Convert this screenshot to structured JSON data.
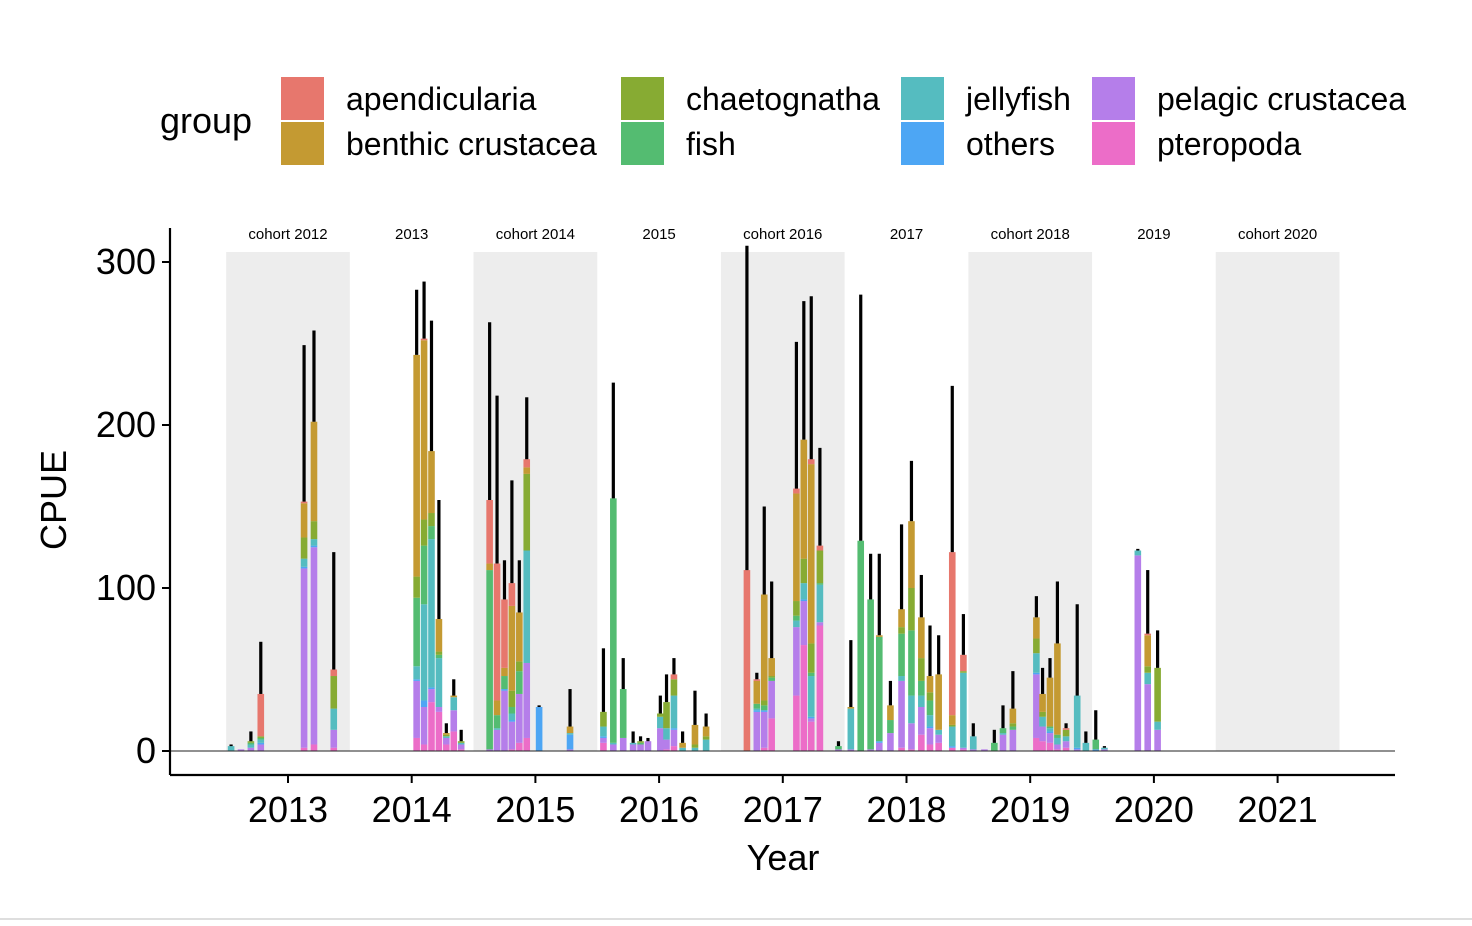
{
  "chart_data": {
    "type": "bar",
    "stacked": true,
    "title": "",
    "xlabel": "Year",
    "ylabel": "CPUE",
    "xlim": [
      2011.9,
      2021.9
    ],
    "ylim": [
      -14,
      320
    ],
    "x_ticks": [
      2013,
      2014,
      2015,
      2016,
      2017,
      2018,
      2019,
      2020,
      2021
    ],
    "y_ticks": [
      0,
      100,
      200,
      300
    ],
    "grid": false,
    "legend": {
      "title": "group",
      "placement": "top",
      "entries": [
        {
          "name": "apendicularia",
          "color": "#E7776D"
        },
        {
          "name": "benthic crustacea",
          "color": "#C49A32"
        },
        {
          "name": "chaetognatha",
          "color": "#87AB33"
        },
        {
          "name": "fish",
          "color": "#54BC71"
        },
        {
          "name": "jellyfish",
          "color": "#55BCC0"
        },
        {
          "name": "others",
          "color": "#4DA6F4"
        },
        {
          "name": "pelagic crustacea",
          "color": "#B57EEA"
        },
        {
          "name": "pteropoda",
          "color": "#EC6DC8"
        }
      ]
    },
    "stack_order": [
      "pteropoda",
      "pelagic crustacea",
      "others",
      "jellyfish",
      "fish",
      "chaetognatha",
      "benthic crustacea",
      "apendicularia"
    ],
    "cohort_bands": [
      {
        "label": "cohort 2012",
        "start": 2012.5,
        "end": 2013.5,
        "shaded": true
      },
      {
        "label": "2013",
        "start": 2013.5,
        "end": 2014.5,
        "shaded": false
      },
      {
        "label": "cohort 2014",
        "start": 2014.5,
        "end": 2015.5,
        "shaded": true
      },
      {
        "label": "2015",
        "start": 2015.5,
        "end": 2016.5,
        "shaded": false
      },
      {
        "label": "cohort 2016",
        "start": 2016.5,
        "end": 2017.5,
        "shaded": true
      },
      {
        "label": "2017",
        "start": 2017.5,
        "end": 2018.5,
        "shaded": false
      },
      {
        "label": "cohort 2018",
        "start": 2018.5,
        "end": 2019.5,
        "shaded": true
      },
      {
        "label": "2019",
        "start": 2019.5,
        "end": 2020.5,
        "shaded": false
      },
      {
        "label": "cohort 2020",
        "start": 2020.5,
        "end": 2021.5,
        "shaded": true
      }
    ],
    "bars": [
      {
        "x": 2012.54,
        "segments": {
          "jellyfish": 3
        },
        "error": 4
      },
      {
        "x": 2012.62,
        "segments": {
          "pelagic crustacea": 1
        },
        "error": 1
      },
      {
        "x": 2012.7,
        "segments": {
          "pelagic crustacea": 2,
          "jellyfish": 2,
          "fish": 1,
          "chaetognatha": 1
        },
        "error": 12
      },
      {
        "x": 2012.78,
        "segments": {
          "pelagic crustacea": 4,
          "others": 1,
          "jellyfish": 2,
          "fish": 1,
          "chaetognatha": 1,
          "apendicularia": 26
        },
        "error": 67
      },
      {
        "x": 2013.13,
        "segments": {
          "pteropoda": 2,
          "pelagic crustacea": 110,
          "others": 1,
          "jellyfish": 5,
          "chaetognatha": 13,
          "benthic crustacea": 21,
          "apendicularia": 1
        },
        "error": 249
      },
      {
        "x": 2013.21,
        "segments": {
          "pteropoda": 4,
          "pelagic crustacea": 121,
          "others": 1,
          "jellyfish": 4,
          "chaetognatha": 11,
          "benthic crustacea": 61
        },
        "error": 258
      },
      {
        "x": 2013.37,
        "segments": {
          "pteropoda": 2,
          "pelagic crustacea": 11,
          "jellyfish": 13,
          "chaetognatha": 20,
          "apendicularia": 4
        },
        "error": 122
      },
      {
        "x": 2014.04,
        "segments": {
          "pteropoda": 8,
          "pelagic crustacea": 35,
          "others": 1,
          "jellyfish": 8,
          "fish": 42,
          "chaetognatha": 13,
          "benthic crustacea": 136
        },
        "error": 283
      },
      {
        "x": 2014.1,
        "segments": {
          "pteropoda": 4,
          "pelagic crustacea": 23,
          "others": 4,
          "jellyfish": 59,
          "fish": 36,
          "chaetognatha": 16,
          "benthic crustacea": 110,
          "apendicularia": 1
        },
        "error": 288
      },
      {
        "x": 2014.16,
        "segments": {
          "pteropoda": 30,
          "pelagic crustacea": 8,
          "others": 1,
          "jellyfish": 91,
          "fish": 8,
          "chaetognatha": 8,
          "benthic crustacea": 38
        },
        "error": 264
      },
      {
        "x": 2014.22,
        "segments": {
          "pteropoda": 24,
          "pelagic crustacea": 3,
          "jellyfish": 30,
          "fish": 2,
          "chaetognatha": 2,
          "benthic crustacea": 20
        },
        "error": 154
      },
      {
        "x": 2014.28,
        "segments": {
          "pteropoda": 4,
          "pelagic crustacea": 4,
          "jellyfish": 1,
          "chaetognatha": 1,
          "benthic crustacea": 1
        },
        "error": 17
      },
      {
        "x": 2014.34,
        "segments": {
          "pteropoda": 12,
          "pelagic crustacea": 13,
          "jellyfish": 8,
          "benthic crustacea": 1
        },
        "error": 44
      },
      {
        "x": 2014.4,
        "segments": {
          "pteropoda": 1,
          "pelagic crustacea": 3,
          "jellyfish": 1,
          "chaetognatha": 1
        },
        "error": 13
      },
      {
        "x": 2014.63,
        "segments": {
          "pelagic crustacea": 1,
          "fish": 110,
          "benthic crustacea": 4,
          "apendicularia": 39
        },
        "error": 263
      },
      {
        "x": 2014.69,
        "segments": {
          "pelagic crustacea": 13,
          "jellyfish": 1,
          "fish": 8,
          "benthic crustacea": 9,
          "apendicularia": 84
        },
        "error": 218
      },
      {
        "x": 2014.75,
        "segments": {
          "pelagic crustacea": 37,
          "others": 1,
          "fish": 8,
          "benthic crustacea": 5,
          "apendicularia": 42
        },
        "error": 117
      },
      {
        "x": 2014.81,
        "segments": {
          "pteropoda": 1,
          "pelagic crustacea": 17,
          "others": 1,
          "jellyfish": 4,
          "fish": 4,
          "chaetognatha": 10,
          "benthic crustacea": 52,
          "apendicularia": 14
        },
        "error": 166
      },
      {
        "x": 2014.87,
        "segments": {
          "pteropoda": 5,
          "pelagic crustacea": 30,
          "fish": 14,
          "chaetognatha": 6,
          "benthic crustacea": 30
        },
        "error": 117
      },
      {
        "x": 2014.93,
        "segments": {
          "pteropoda": 8,
          "pelagic crustacea": 46,
          "jellyfish": 69,
          "chaetognatha": 47,
          "benthic crustacea": 4,
          "apendicularia": 5
        },
        "error": 217
      },
      {
        "x": 2015.03,
        "segments": {
          "others": 27
        },
        "error": 28
      },
      {
        "x": 2015.28,
        "segments": {
          "pelagic crustacea": 1,
          "others": 9,
          "jellyfish": 1,
          "benthic crustacea": 4
        },
        "error": 38
      },
      {
        "x": 2015.55,
        "segments": {
          "pteropoda": 5,
          "pelagic crustacea": 3,
          "others": 1,
          "jellyfish": 6,
          "chaetognatha": 9
        },
        "error": 63
      },
      {
        "x": 2015.63,
        "segments": {
          "pelagic crustacea": 4,
          "jellyfish": 1,
          "fish": 150
        },
        "error": 226
      },
      {
        "x": 2015.71,
        "segments": {
          "pelagic crustacea": 8,
          "fish": 30
        },
        "error": 57
      },
      {
        "x": 2015.79,
        "segments": {
          "pelagic crustacea": 4,
          "jellyfish": 1
        },
        "error": 12
      },
      {
        "x": 2015.85,
        "segments": {
          "pelagic crustacea": 4,
          "fish": 1,
          "chaetognatha": 1
        },
        "error": 9
      },
      {
        "x": 2015.91,
        "segments": {
          "pelagic crustacea": 6
        },
        "error": 8
      },
      {
        "x": 2016.01,
        "segments": {
          "pelagic crustacea": 14,
          "jellyfish": 7,
          "chaetognatha": 2
        },
        "error": 34
      },
      {
        "x": 2016.06,
        "segments": {
          "pteropoda": 1,
          "pelagic crustacea": 6,
          "jellyfish": 7,
          "chaetognatha": 16
        },
        "error": 47
      },
      {
        "x": 2016.12,
        "segments": {
          "pteropoda": 3,
          "pelagic crustacea": 10,
          "others": 1,
          "jellyfish": 20,
          "chaetognatha": 10,
          "apendicularia": 3
        },
        "error": 57
      },
      {
        "x": 2016.19,
        "segments": {
          "jellyfish": 2,
          "benthic crustacea": 3
        },
        "error": 12
      },
      {
        "x": 2016.29,
        "segments": {
          "jellyfish": 2,
          "chaetognatha": 2,
          "benthic crustacea": 12
        },
        "error": 37
      },
      {
        "x": 2016.38,
        "segments": {
          "jellyfish": 7,
          "chaetognatha": 2,
          "benthic crustacea": 6
        },
        "error": 23
      },
      {
        "x": 2016.71,
        "segments": {
          "apendicularia": 111
        },
        "error": 310
      },
      {
        "x": 2016.79,
        "segments": {
          "pelagic crustacea": 24,
          "others": 1,
          "jellyfish": 1,
          "fish": 3,
          "benthic crustacea": 14,
          "apendicularia": 1
        },
        "error": 48
      },
      {
        "x": 2016.85,
        "segments": {
          "pteropoda": 2,
          "pelagic crustacea": 22,
          "others": 1,
          "fish": 3,
          "chaetognatha": 3,
          "benthic crustacea": 65
        },
        "error": 150
      },
      {
        "x": 2016.91,
        "segments": {
          "pteropoda": 20,
          "pelagic crustacea": 23,
          "fish": 2,
          "chaetognatha": 1,
          "benthic crustacea": 11
        },
        "error": 104
      },
      {
        "x": 2017.11,
        "segments": {
          "pteropoda": 34,
          "pelagic crustacea": 42,
          "jellyfish": 4,
          "fish": 3,
          "chaetognatha": 9,
          "benthic crustacea": 66,
          "apendicularia": 3
        },
        "error": 251
      },
      {
        "x": 2017.17,
        "segments": {
          "pteropoda": 65,
          "pelagic crustacea": 27,
          "others": 1,
          "jellyfish": 10,
          "chaetognatha": 15,
          "benthic crustacea": 73
        },
        "error": 276
      },
      {
        "x": 2017.23,
        "segments": {
          "pteropoda": 18,
          "pelagic crustacea": 2,
          "others": 1,
          "jellyfish": 25,
          "fish": 2,
          "chaetognatha": 18,
          "benthic crustacea": 110,
          "apendicularia": 3
        },
        "error": 279
      },
      {
        "x": 2017.3,
        "segments": {
          "pteropoda": 77,
          "pelagic crustacea": 2,
          "jellyfish": 23,
          "fish": 1,
          "chaetognatha": 20,
          "apendicularia": 3
        },
        "error": 186
      },
      {
        "x": 2017.45,
        "segments": {
          "pelagic crustacea": 1,
          "fish": 2
        },
        "error": 6
      },
      {
        "x": 2017.55,
        "segments": {
          "pelagic crustacea": 1,
          "jellyfish": 25,
          "benthic crustacea": 1
        },
        "error": 68
      },
      {
        "x": 2017.63,
        "segments": {
          "fish": 129
        },
        "error": 280
      },
      {
        "x": 2017.71,
        "segments": {
          "pelagic crustacea": 1,
          "fish": 92
        },
        "error": 121
      },
      {
        "x": 2017.78,
        "segments": {
          "pelagic crustacea": 5,
          "others": 1,
          "fish": 64,
          "benthic crustacea": 1
        },
        "error": 121
      },
      {
        "x": 2017.87,
        "segments": {
          "pelagic crustacea": 11,
          "fish": 8,
          "benthic crustacea": 9
        },
        "error": 43
      },
      {
        "x": 2017.96,
        "segments": {
          "pteropoda": 2,
          "pelagic crustacea": 41,
          "jellyfish": 3,
          "fish": 26,
          "chaetognatha": 4,
          "benthic crustacea": 11
        },
        "error": 139
      },
      {
        "x": 2018.04,
        "segments": {
          "pteropoda": 1,
          "pelagic crustacea": 16,
          "jellyfish": 17,
          "fish": 40,
          "chaetognatha": 26,
          "benthic crustacea": 41
        },
        "error": 178
      },
      {
        "x": 2018.12,
        "segments": {
          "pteropoda": 10,
          "pelagic crustacea": 17,
          "jellyfish": 7,
          "fish": 9,
          "chaetognatha": 14,
          "benthic crustacea": 25
        },
        "error": 108
      },
      {
        "x": 2018.19,
        "segments": {
          "pteropoda": 4,
          "pelagic crustacea": 10,
          "others": 1,
          "jellyfish": 7,
          "fish": 9,
          "chaetognatha": 5,
          "benthic crustacea": 10
        },
        "error": 77
      },
      {
        "x": 2018.26,
        "segments": {
          "pteropoda": 5,
          "pelagic crustacea": 5,
          "jellyfish": 3,
          "benthic crustacea": 34
        },
        "error": 71
      },
      {
        "x": 2018.37,
        "segments": {
          "pteropoda": 2,
          "others": 1,
          "jellyfish": 12,
          "chaetognatha": 1,
          "benthic crustacea": 6,
          "apendicularia": 100
        },
        "error": 224
      },
      {
        "x": 2018.46,
        "segments": {
          "pteropoda": 1,
          "pelagic crustacea": 1,
          "jellyfish": 46,
          "chaetognatha": 1,
          "apendicularia": 10
        },
        "error": 84
      },
      {
        "x": 2018.54,
        "segments": {
          "pelagic crustacea": 1,
          "jellyfish": 8
        },
        "error": 17
      },
      {
        "x": 2018.63,
        "segments": {
          "pelagic crustacea": 1
        },
        "error": 1
      },
      {
        "x": 2018.71,
        "segments": {
          "fish": 5
        },
        "error": 13
      },
      {
        "x": 2018.78,
        "segments": {
          "pelagic crustacea": 10,
          "jellyfish": 1,
          "fish": 3
        },
        "error": 28
      },
      {
        "x": 2018.86,
        "segments": {
          "pelagic crustacea": 13,
          "fish": 2,
          "chaetognatha": 2,
          "benthic crustacea": 9
        },
        "error": 49
      },
      {
        "x": 2019.05,
        "segments": {
          "pteropoda": 8,
          "pelagic crustacea": 39,
          "others": 1,
          "jellyfish": 12,
          "chaetognatha": 9,
          "benthic crustacea": 13
        },
        "error": 95
      },
      {
        "x": 2019.1,
        "segments": {
          "pteropoda": 6,
          "pelagic crustacea": 9,
          "jellyfish": 6,
          "chaetognatha": 3,
          "benthic crustacea": 11
        },
        "error": 51
      },
      {
        "x": 2019.16,
        "segments": {
          "pteropoda": 5,
          "pelagic crustacea": 6,
          "others": 1,
          "jellyfish": 2,
          "fish": 1,
          "benthic crustacea": 30
        },
        "error": 57
      },
      {
        "x": 2019.22,
        "segments": {
          "pteropoda": 1,
          "pelagic crustacea": 3,
          "jellyfish": 4,
          "fish": 2,
          "benthic crustacea": 56
        },
        "error": 104
      },
      {
        "x": 2019.29,
        "segments": {
          "pteropoda": 2,
          "pelagic crustacea": 4,
          "jellyfish": 3,
          "chaetognatha": 4,
          "apendicularia": 1
        },
        "error": 17
      },
      {
        "x": 2019.38,
        "segments": {
          "pelagic crustacea": 1,
          "others": 1,
          "jellyfish": 32
        },
        "error": 90
      },
      {
        "x": 2019.45,
        "segments": {
          "jellyfish": 5
        },
        "error": 12
      },
      {
        "x": 2019.53,
        "segments": {
          "others": 1,
          "fish": 6
        },
        "error": 25
      },
      {
        "x": 2019.6,
        "segments": {
          "pelagic crustacea": 1,
          "jellyfish": 1
        },
        "error": 3
      },
      {
        "x": 2019.87,
        "segments": {
          "pelagic crustacea": 120,
          "jellyfish": 3
        },
        "error": 124
      },
      {
        "x": 2019.95,
        "segments": {
          "pelagic crustacea": 41,
          "jellyfish": 7,
          "chaetognatha": 4,
          "benthic crustacea": 19,
          "apendicularia": 1
        },
        "error": 111
      },
      {
        "x": 2020.03,
        "segments": {
          "pelagic crustacea": 13,
          "jellyfish": 5,
          "chaetognatha": 33
        },
        "error": 74
      }
    ]
  }
}
